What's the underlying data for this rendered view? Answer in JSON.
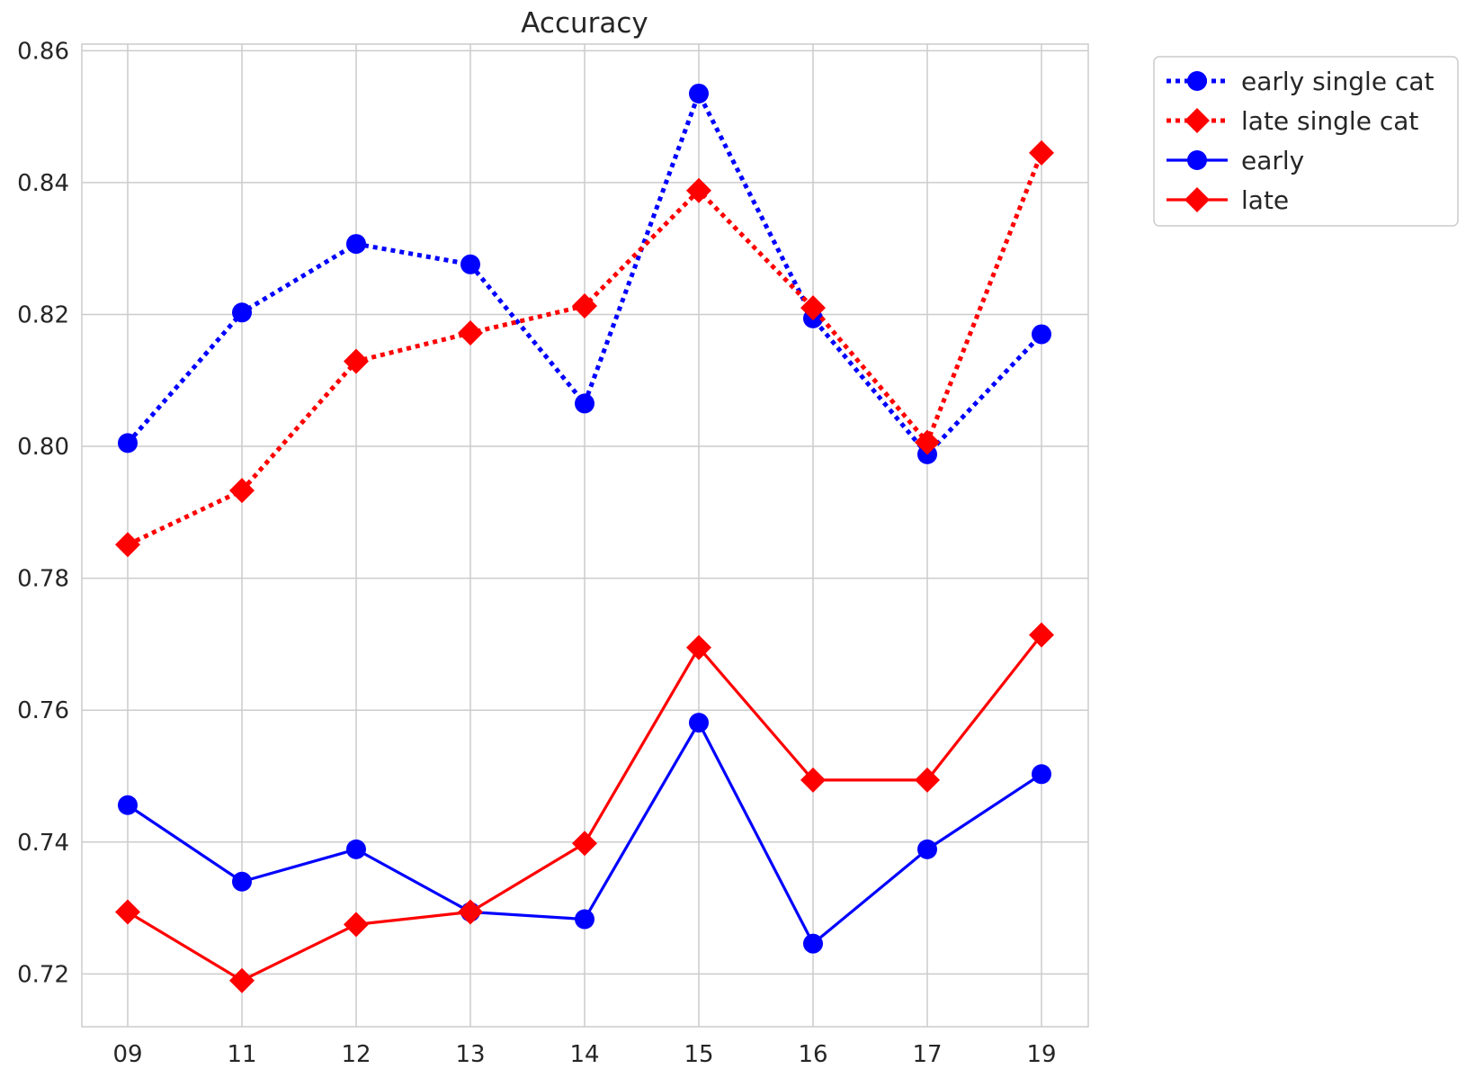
{
  "chart_data": {
    "type": "line",
    "title": "Accuracy",
    "xlabel": "",
    "ylabel": "",
    "categories": [
      "09",
      "11",
      "12",
      "13",
      "14",
      "15",
      "16",
      "17",
      "19"
    ],
    "ylim": [
      0.712,
      0.861
    ],
    "yticks": [
      0.72,
      0.74,
      0.76,
      0.78,
      0.8,
      0.82,
      0.84,
      0.86
    ],
    "ytick_labels": [
      "0.72",
      "0.74",
      "0.76",
      "0.78",
      "0.80",
      "0.82",
      "0.84",
      "0.86"
    ],
    "grid": true,
    "legend_position": "outside top-right",
    "series": [
      {
        "name": "early single cat",
        "color": "#0000ff",
        "line_style": "dotted",
        "marker": "circle",
        "values": [
          0.8005,
          0.8203,
          0.8307,
          0.8276,
          0.8065,
          0.8535,
          0.8194,
          0.7988,
          0.817
        ]
      },
      {
        "name": "late single cat",
        "color": "#ff0000",
        "line_style": "dotted",
        "marker": "diamond",
        "values": [
          0.7851,
          0.7933,
          0.8129,
          0.8172,
          0.8213,
          0.8388,
          0.821,
          0.8006,
          0.8445
        ]
      },
      {
        "name": "early",
        "color": "#0000ff",
        "line_style": "solid",
        "marker": "circle",
        "values": [
          0.7456,
          0.734,
          0.7389,
          0.7294,
          0.7283,
          0.7581,
          0.7246,
          0.7389,
          0.7503
        ]
      },
      {
        "name": "late",
        "color": "#ff0000",
        "line_style": "solid",
        "marker": "diamond",
        "values": [
          0.7294,
          0.719,
          0.7275,
          0.7294,
          0.7398,
          0.7695,
          0.7494,
          0.7494,
          0.7714
        ]
      }
    ]
  }
}
